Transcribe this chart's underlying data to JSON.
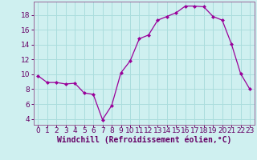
{
  "x": [
    0,
    1,
    2,
    3,
    4,
    5,
    6,
    7,
    8,
    9,
    10,
    11,
    12,
    13,
    14,
    15,
    16,
    17,
    18,
    19,
    20,
    21,
    22,
    23
  ],
  "y": [
    9.8,
    8.9,
    8.9,
    8.7,
    8.8,
    7.5,
    7.3,
    3.9,
    5.8,
    10.2,
    11.8,
    14.8,
    15.3,
    17.3,
    17.8,
    18.3,
    19.2,
    19.2,
    19.1,
    17.8,
    17.3,
    14.1,
    10.1,
    8.0
  ],
  "xlim": [
    -0.5,
    23.5
  ],
  "ylim": [
    3.2,
    19.8
  ],
  "yticks": [
    4,
    6,
    8,
    10,
    12,
    14,
    16,
    18
  ],
  "xticks": [
    0,
    1,
    2,
    3,
    4,
    5,
    6,
    7,
    8,
    9,
    10,
    11,
    12,
    13,
    14,
    15,
    16,
    17,
    18,
    19,
    20,
    21,
    22,
    23
  ],
  "xlabel": "Windchill (Refroidissement éolien,°C)",
  "line_color": "#990099",
  "marker_color": "#990099",
  "bg_color": "#cff0f0",
  "grid_color": "#aadddd",
  "axis_color": "#996699",
  "tick_color": "#660066",
  "xlabel_color": "#660066",
  "xlabel_fontsize": 7.0,
  "tick_fontsize": 6.5
}
